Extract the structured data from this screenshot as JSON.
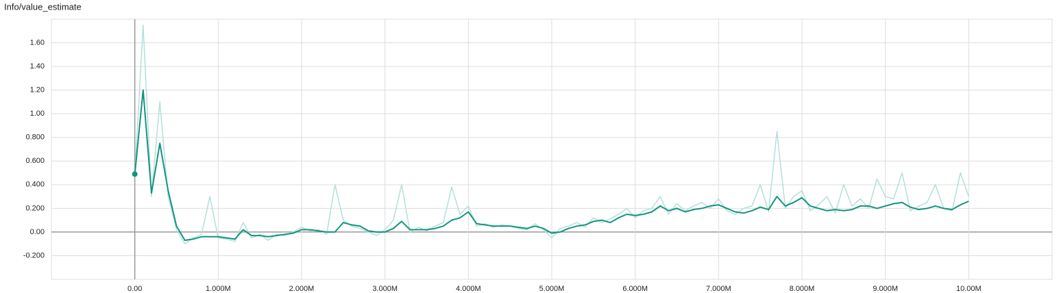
{
  "chart_data": {
    "type": "line",
    "title": "Info/value_estimate",
    "x": [
      0,
      100000,
      200000,
      300000,
      400000,
      500000,
      600000,
      700000,
      800000,
      900000,
      1000000,
      1100000,
      1200000,
      1300000,
      1400000,
      1500000,
      1600000,
      1700000,
      1800000,
      1900000,
      2000000,
      2100000,
      2200000,
      2300000,
      2400000,
      2500000,
      2600000,
      2700000,
      2800000,
      2900000,
      3000000,
      3100000,
      3200000,
      3300000,
      3400000,
      3500000,
      3600000,
      3700000,
      3800000,
      3900000,
      4000000,
      4100000,
      4200000,
      4300000,
      4400000,
      4500000,
      4600000,
      4700000,
      4800000,
      4900000,
      5000000,
      5100000,
      5200000,
      5300000,
      5400000,
      5500000,
      5600000,
      5700000,
      5800000,
      5900000,
      6000000,
      6100000,
      6200000,
      6300000,
      6400000,
      6500000,
      6600000,
      6700000,
      6800000,
      6900000,
      7000000,
      7100000,
      7200000,
      7300000,
      7400000,
      7500000,
      7600000,
      7700000,
      7800000,
      7900000,
      8000000,
      8100000,
      8200000,
      8300000,
      8400000,
      8500000,
      8600000,
      8700000,
      8800000,
      8900000,
      9000000,
      9100000,
      9200000,
      9300000,
      9400000,
      9500000,
      9600000,
      9700000,
      9800000,
      9900000,
      10000000
    ],
    "series": [
      {
        "color": "#b2dfdb",
        "values": [
          0.49,
          1.75,
          0.3,
          1.1,
          0.3,
          0.02,
          -0.1,
          -0.05,
          -0.02,
          0.3,
          -0.05,
          -0.06,
          -0.08,
          0.08,
          -0.05,
          -0.02,
          -0.07,
          -0.02,
          -0.03,
          0.0,
          0.04,
          0.01,
          0.02,
          -0.02,
          0.4,
          0.1,
          0.05,
          0.03,
          0.0,
          -0.03,
          0.02,
          0.1,
          0.4,
          0.0,
          0.04,
          0.01,
          0.05,
          0.08,
          0.38,
          0.15,
          0.22,
          0.05,
          0.07,
          0.04,
          0.06,
          0.05,
          0.03,
          0.02,
          0.07,
          0.02,
          -0.05,
          0.03,
          0.05,
          0.08,
          0.04,
          0.12,
          0.08,
          0.11,
          0.15,
          0.2,
          0.12,
          0.18,
          0.2,
          0.3,
          0.15,
          0.24,
          0.18,
          0.22,
          0.25,
          0.2,
          0.28,
          0.18,
          0.15,
          0.2,
          0.22,
          0.4,
          0.17,
          0.85,
          0.2,
          0.3,
          0.35,
          0.18,
          0.23,
          0.3,
          0.16,
          0.4,
          0.22,
          0.28,
          0.2,
          0.45,
          0.3,
          0.28,
          0.5,
          0.18,
          0.22,
          0.25,
          0.4,
          0.2,
          0.18,
          0.5,
          0.3
        ]
      },
      {
        "color": "#12947f",
        "values": [
          0.49,
          1.2,
          0.33,
          0.75,
          0.35,
          0.05,
          -0.07,
          -0.06,
          -0.04,
          -0.04,
          -0.04,
          -0.05,
          -0.06,
          0.02,
          -0.03,
          -0.03,
          -0.04,
          -0.03,
          -0.02,
          -0.01,
          0.02,
          0.02,
          0.01,
          0.0,
          0.0,
          0.08,
          0.06,
          0.05,
          0.01,
          0.0,
          0.0,
          0.03,
          0.09,
          0.02,
          0.02,
          0.02,
          0.03,
          0.05,
          0.1,
          0.12,
          0.17,
          0.07,
          0.06,
          0.05,
          0.05,
          0.05,
          0.04,
          0.03,
          0.05,
          0.03,
          -0.01,
          0.0,
          0.03,
          0.05,
          0.06,
          0.09,
          0.1,
          0.08,
          0.12,
          0.15,
          0.14,
          0.15,
          0.17,
          0.22,
          0.18,
          0.2,
          0.17,
          0.19,
          0.2,
          0.22,
          0.23,
          0.2,
          0.17,
          0.16,
          0.18,
          0.21,
          0.19,
          0.3,
          0.22,
          0.25,
          0.29,
          0.22,
          0.2,
          0.18,
          0.19,
          0.18,
          0.19,
          0.22,
          0.22,
          0.2,
          0.22,
          0.24,
          0.25,
          0.21,
          0.19,
          0.2,
          0.22,
          0.2,
          0.19,
          0.23,
          0.26
        ]
      }
    ],
    "xlim": [
      -1000000,
      11000000
    ],
    "ylim": [
      -0.4,
      1.8
    ],
    "xticks": [
      {
        "value": 0,
        "label": "0.00"
      },
      {
        "value": 1000000,
        "label": "1.000M"
      },
      {
        "value": 2000000,
        "label": "2.000M"
      },
      {
        "value": 3000000,
        "label": "3.000M"
      },
      {
        "value": 4000000,
        "label": "4.000M"
      },
      {
        "value": 5000000,
        "label": "5.000M"
      },
      {
        "value": 6000000,
        "label": "6.000M"
      },
      {
        "value": 7000000,
        "label": "7.000M"
      },
      {
        "value": 8000000,
        "label": "8.000M"
      },
      {
        "value": 9000000,
        "label": "9.000M"
      },
      {
        "value": 10000000,
        "label": "10.00M"
      }
    ],
    "yticks": [
      {
        "value": -0.2,
        "label": "-0.200"
      },
      {
        "value": 0,
        "label": "0.00"
      },
      {
        "value": 0.2,
        "label": "0.200"
      },
      {
        "value": 0.4,
        "label": "0.400"
      },
      {
        "value": 0.6,
        "label": "0.600"
      },
      {
        "value": 0.8,
        "label": "0.800"
      },
      {
        "value": 1,
        "label": "1.00"
      },
      {
        "value": 1.2,
        "label": "1.20"
      },
      {
        "value": 1.4,
        "label": "1.40"
      },
      {
        "value": 1.6,
        "label": "1.60"
      }
    ],
    "grid": true
  }
}
